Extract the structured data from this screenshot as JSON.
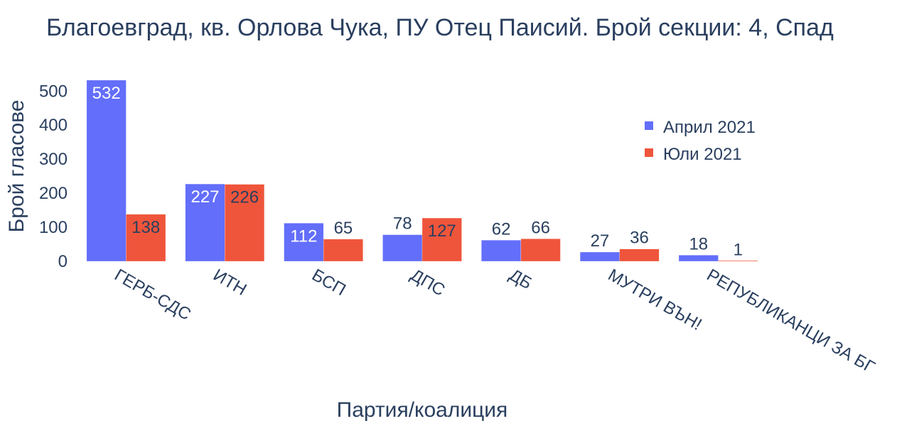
{
  "chart_data": {
    "type": "bar",
    "title": "Благоевград, кв. Орлова Чука, ПУ Отец Паисий. Брой секции: 4,  Спад",
    "xlabel": "Партия/коалиция",
    "ylabel": "Брой гласове",
    "categories": [
      "ГЕРБ-СДС",
      "ИТН",
      "БСП",
      "ДПС",
      "ДБ",
      "МУТРИ ВЪН!",
      "РЕПУБЛИКАНЦИ ЗА БГ"
    ],
    "series": [
      {
        "name": "Април 2021",
        "color": "#636efa",
        "values": [
          532,
          227,
          112,
          78,
          62,
          27,
          18
        ]
      },
      {
        "name": "Юли 2021",
        "color": "#ef553b",
        "values": [
          138,
          226,
          65,
          127,
          66,
          36,
          1
        ]
      }
    ],
    "yticks": [
      0,
      100,
      200,
      300,
      400,
      500
    ],
    "ylim": [
      0,
      560
    ],
    "grid": false,
    "legend_position": "top-right-inside",
    "x_tick_angle": 30
  }
}
